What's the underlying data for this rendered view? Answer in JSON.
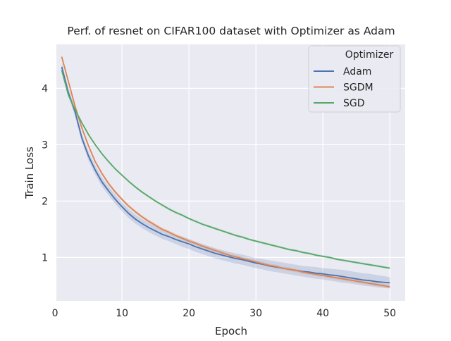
{
  "chart_data": {
    "type": "line",
    "title": "Perf. of resnet on CIFAR100 dataset with Optimizer as Adam",
    "xlabel": "Epoch",
    "ylabel": "Train Loss",
    "xlim": [
      0.2,
      52.3
    ],
    "ylim": [
      0.23,
      4.78
    ],
    "xticks": [
      0,
      10,
      20,
      30,
      40,
      50
    ],
    "yticks": [
      1,
      2,
      3,
      4
    ],
    "grid": true,
    "legend": {
      "title": "Optimizer",
      "placement": "top-right"
    },
    "x": [
      1,
      2,
      3,
      4,
      5,
      6,
      7,
      8,
      9,
      10,
      11,
      12,
      13,
      14,
      15,
      16,
      17,
      18,
      19,
      20,
      21,
      22,
      23,
      24,
      25,
      26,
      27,
      28,
      29,
      30,
      31,
      32,
      33,
      34,
      35,
      36,
      37,
      38,
      39,
      40,
      41,
      42,
      43,
      44,
      45,
      46,
      47,
      48,
      49,
      50
    ],
    "series": [
      {
        "name": "Adam",
        "color": "#4c72b0",
        "values": [
          4.38,
          3.92,
          3.58,
          3.12,
          2.8,
          2.55,
          2.34,
          2.18,
          2.03,
          1.9,
          1.78,
          1.68,
          1.6,
          1.53,
          1.47,
          1.41,
          1.37,
          1.32,
          1.28,
          1.24,
          1.19,
          1.15,
          1.11,
          1.07,
          1.04,
          1.01,
          0.98,
          0.96,
          0.93,
          0.9,
          0.88,
          0.85,
          0.83,
          0.81,
          0.79,
          0.77,
          0.75,
          0.74,
          0.72,
          0.71,
          0.69,
          0.68,
          0.66,
          0.64,
          0.62,
          0.6,
          0.59,
          0.57,
          0.56,
          0.55
        ],
        "band_lower": [
          4.3,
          3.85,
          3.5,
          3.05,
          2.72,
          2.47,
          2.26,
          2.1,
          1.95,
          1.82,
          1.7,
          1.6,
          1.52,
          1.45,
          1.39,
          1.33,
          1.29,
          1.24,
          1.19,
          1.15,
          1.1,
          1.06,
          1.02,
          0.98,
          0.95,
          0.92,
          0.89,
          0.87,
          0.84,
          0.81,
          0.79,
          0.76,
          0.74,
          0.72,
          0.7,
          0.68,
          0.66,
          0.64,
          0.62,
          0.61,
          0.59,
          0.57,
          0.55,
          0.54,
          0.52,
          0.5,
          0.49,
          0.47,
          0.46,
          0.45
        ],
        "band_upper": [
          4.46,
          4.0,
          3.66,
          3.2,
          2.88,
          2.63,
          2.42,
          2.26,
          2.11,
          1.98,
          1.86,
          1.76,
          1.68,
          1.61,
          1.55,
          1.49,
          1.45,
          1.4,
          1.37,
          1.33,
          1.28,
          1.24,
          1.2,
          1.16,
          1.13,
          1.1,
          1.07,
          1.05,
          1.02,
          0.99,
          0.97,
          0.95,
          0.93,
          0.91,
          0.89,
          0.87,
          0.85,
          0.84,
          0.83,
          0.81,
          0.8,
          0.79,
          0.78,
          0.76,
          0.74,
          0.72,
          0.71,
          0.69,
          0.67,
          0.65
        ]
      },
      {
        "name": "SGDM",
        "color": "#dd8452",
        "values": [
          4.56,
          4.12,
          3.68,
          3.3,
          2.98,
          2.7,
          2.49,
          2.31,
          2.16,
          2.03,
          1.91,
          1.81,
          1.72,
          1.64,
          1.57,
          1.5,
          1.45,
          1.39,
          1.34,
          1.29,
          1.25,
          1.2,
          1.16,
          1.12,
          1.08,
          1.04,
          1.01,
          0.98,
          0.95,
          0.92,
          0.89,
          0.86,
          0.84,
          0.81,
          0.79,
          0.77,
          0.74,
          0.72,
          0.7,
          0.68,
          0.66,
          0.64,
          0.62,
          0.6,
          0.58,
          0.56,
          0.54,
          0.52,
          0.5,
          0.48
        ],
        "band_lower": [
          4.52,
          4.08,
          3.64,
          3.27,
          2.95,
          2.67,
          2.46,
          2.28,
          2.13,
          2.0,
          1.88,
          1.78,
          1.69,
          1.61,
          1.54,
          1.47,
          1.42,
          1.36,
          1.31,
          1.26,
          1.22,
          1.17,
          1.13,
          1.09,
          1.05,
          1.01,
          0.98,
          0.95,
          0.92,
          0.89,
          0.86,
          0.83,
          0.81,
          0.78,
          0.76,
          0.74,
          0.71,
          0.69,
          0.67,
          0.65,
          0.63,
          0.61,
          0.59,
          0.57,
          0.55,
          0.53,
          0.51,
          0.49,
          0.47,
          0.45
        ],
        "band_upper": [
          4.6,
          4.16,
          3.72,
          3.33,
          3.01,
          2.73,
          2.52,
          2.34,
          2.19,
          2.06,
          1.94,
          1.84,
          1.75,
          1.67,
          1.6,
          1.53,
          1.48,
          1.42,
          1.37,
          1.32,
          1.28,
          1.23,
          1.19,
          1.15,
          1.11,
          1.07,
          1.04,
          1.01,
          0.98,
          0.95,
          0.92,
          0.89,
          0.87,
          0.84,
          0.82,
          0.8,
          0.77,
          0.75,
          0.73,
          0.71,
          0.69,
          0.67,
          0.65,
          0.63,
          0.61,
          0.59,
          0.57,
          0.55,
          0.53,
          0.51
        ]
      },
      {
        "name": "SGD",
        "color": "#55a868",
        "values": [
          4.32,
          3.88,
          3.62,
          3.39,
          3.18,
          3.0,
          2.84,
          2.7,
          2.57,
          2.46,
          2.35,
          2.25,
          2.16,
          2.08,
          2.0,
          1.93,
          1.86,
          1.8,
          1.75,
          1.69,
          1.64,
          1.59,
          1.55,
          1.51,
          1.47,
          1.43,
          1.39,
          1.36,
          1.32,
          1.29,
          1.26,
          1.23,
          1.2,
          1.17,
          1.14,
          1.12,
          1.09,
          1.07,
          1.04,
          1.02,
          1.0,
          0.97,
          0.95,
          0.93,
          0.91,
          0.89,
          0.87,
          0.85,
          0.83,
          0.81
        ],
        "band_lower": [
          4.3,
          3.86,
          3.6,
          3.37,
          3.16,
          2.98,
          2.82,
          2.68,
          2.55,
          2.44,
          2.33,
          2.23,
          2.14,
          2.06,
          1.98,
          1.91,
          1.84,
          1.78,
          1.73,
          1.67,
          1.62,
          1.57,
          1.53,
          1.49,
          1.45,
          1.41,
          1.37,
          1.34,
          1.3,
          1.27,
          1.24,
          1.21,
          1.18,
          1.15,
          1.12,
          1.1,
          1.07,
          1.05,
          1.02,
          1.0,
          0.98,
          0.95,
          0.93,
          0.91,
          0.89,
          0.87,
          0.85,
          0.83,
          0.81,
          0.79
        ],
        "band_upper": [
          4.34,
          3.9,
          3.64,
          3.41,
          3.2,
          3.02,
          2.86,
          2.72,
          2.59,
          2.48,
          2.37,
          2.27,
          2.18,
          2.1,
          2.02,
          1.95,
          1.88,
          1.82,
          1.77,
          1.71,
          1.66,
          1.61,
          1.57,
          1.53,
          1.49,
          1.45,
          1.41,
          1.38,
          1.34,
          1.31,
          1.28,
          1.25,
          1.22,
          1.19,
          1.16,
          1.14,
          1.11,
          1.09,
          1.06,
          1.04,
          1.02,
          0.99,
          0.97,
          0.95,
          0.93,
          0.91,
          0.89,
          0.87,
          0.85,
          0.83
        ]
      }
    ]
  }
}
